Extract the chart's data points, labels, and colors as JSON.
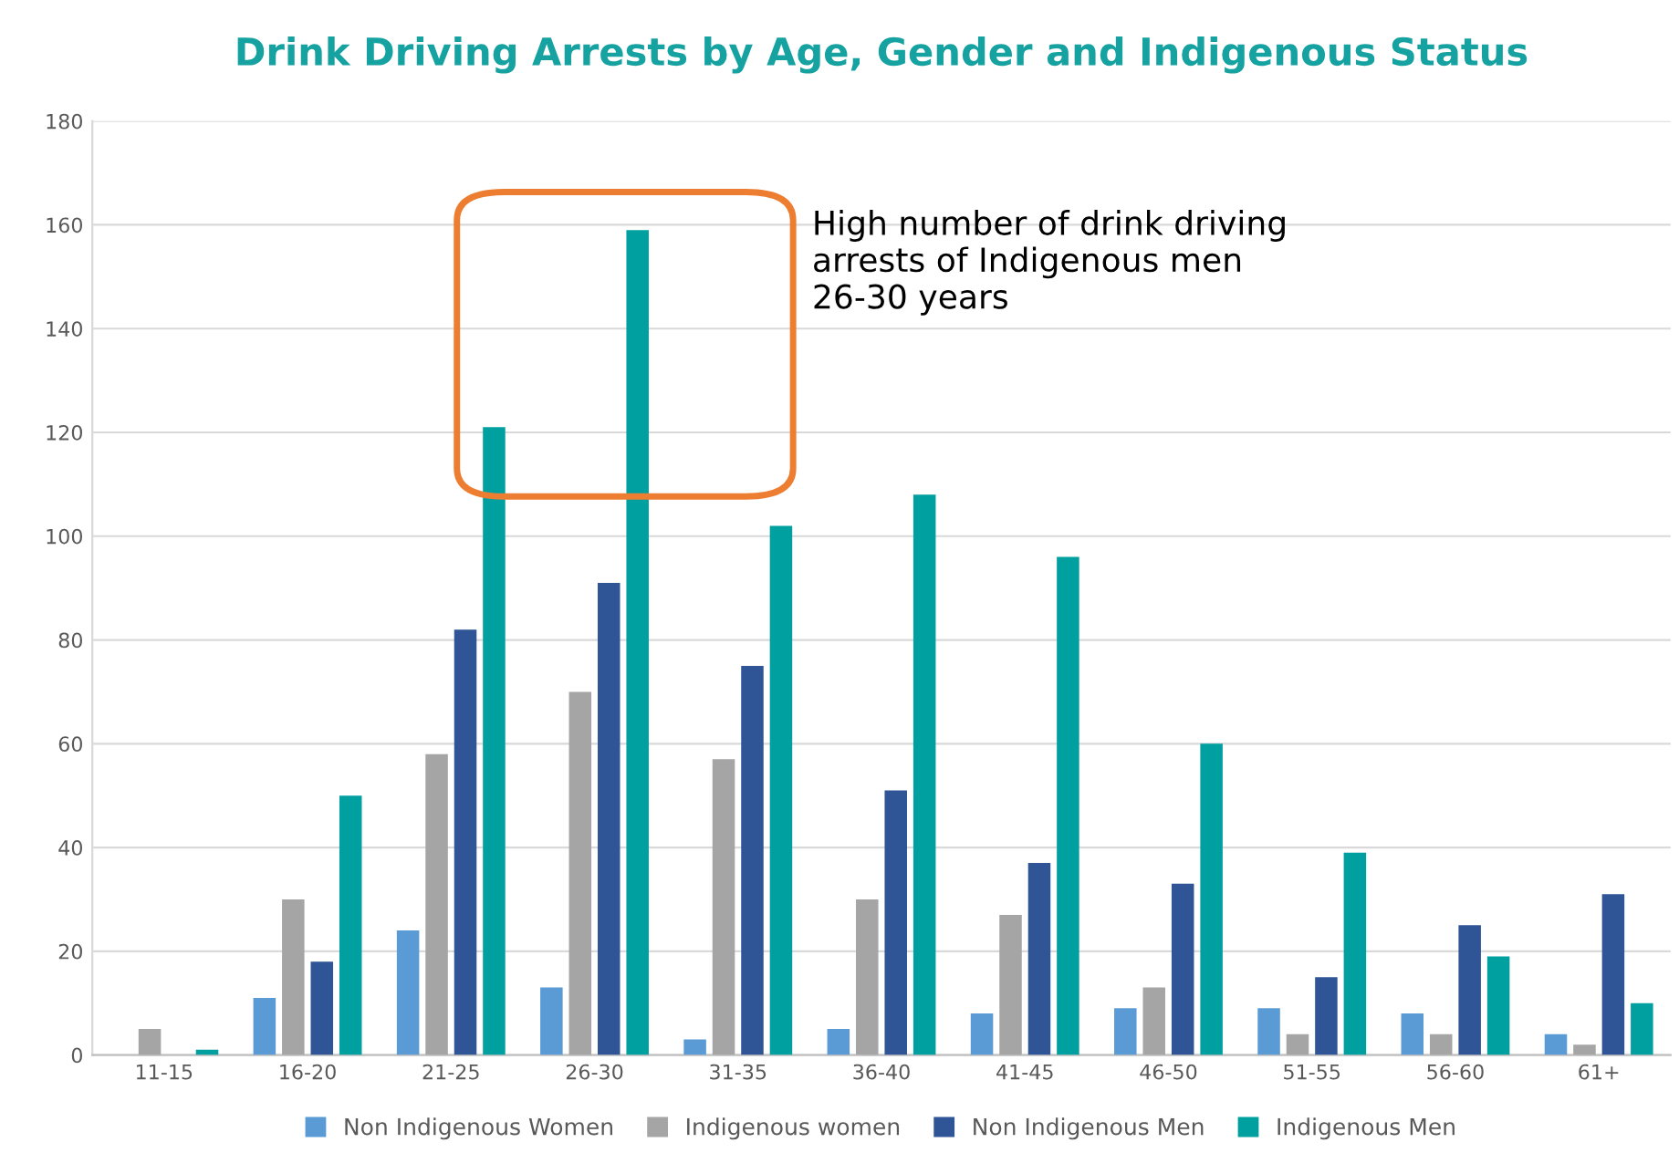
{
  "chart_data": {
    "type": "bar",
    "title": "Drink Driving Arrests by Age, Gender and Indigenous Status",
    "categories": [
      "11-15",
      "16-20",
      "21-25",
      "26-30",
      "31-35",
      "36-40",
      "41-45",
      "46-50",
      "51-55",
      "56-60",
      "61+"
    ],
    "series": [
      {
        "name": "Non Indigenous Women",
        "color": "#5b9bd5",
        "values": [
          null,
          11,
          24,
          13,
          3,
          5,
          8,
          9,
          9,
          8,
          4
        ]
      },
      {
        "name": "Indigenous women",
        "color": "#a5a5a5",
        "values": [
          5,
          30,
          58,
          70,
          57,
          30,
          27,
          13,
          4,
          4,
          2
        ]
      },
      {
        "name": "Non Indigenous Men",
        "color": "#2f5597",
        "values": [
          null,
          18,
          82,
          91,
          75,
          51,
          37,
          33,
          15,
          25,
          31
        ]
      },
      {
        "name": "Indigenous Men",
        "color": "#00a0a0",
        "values": [
          1,
          50,
          121,
          159,
          102,
          108,
          96,
          60,
          39,
          19,
          10
        ]
      }
    ],
    "ylim": [
      0,
      180
    ],
    "yticks": [
      0,
      20,
      40,
      60,
      80,
      100,
      120,
      140,
      160,
      180
    ],
    "grid": "y",
    "legend": "bottom",
    "annotations": [
      "High number of drink driving\narrests of Indigenous men\n26-30 years"
    ]
  }
}
